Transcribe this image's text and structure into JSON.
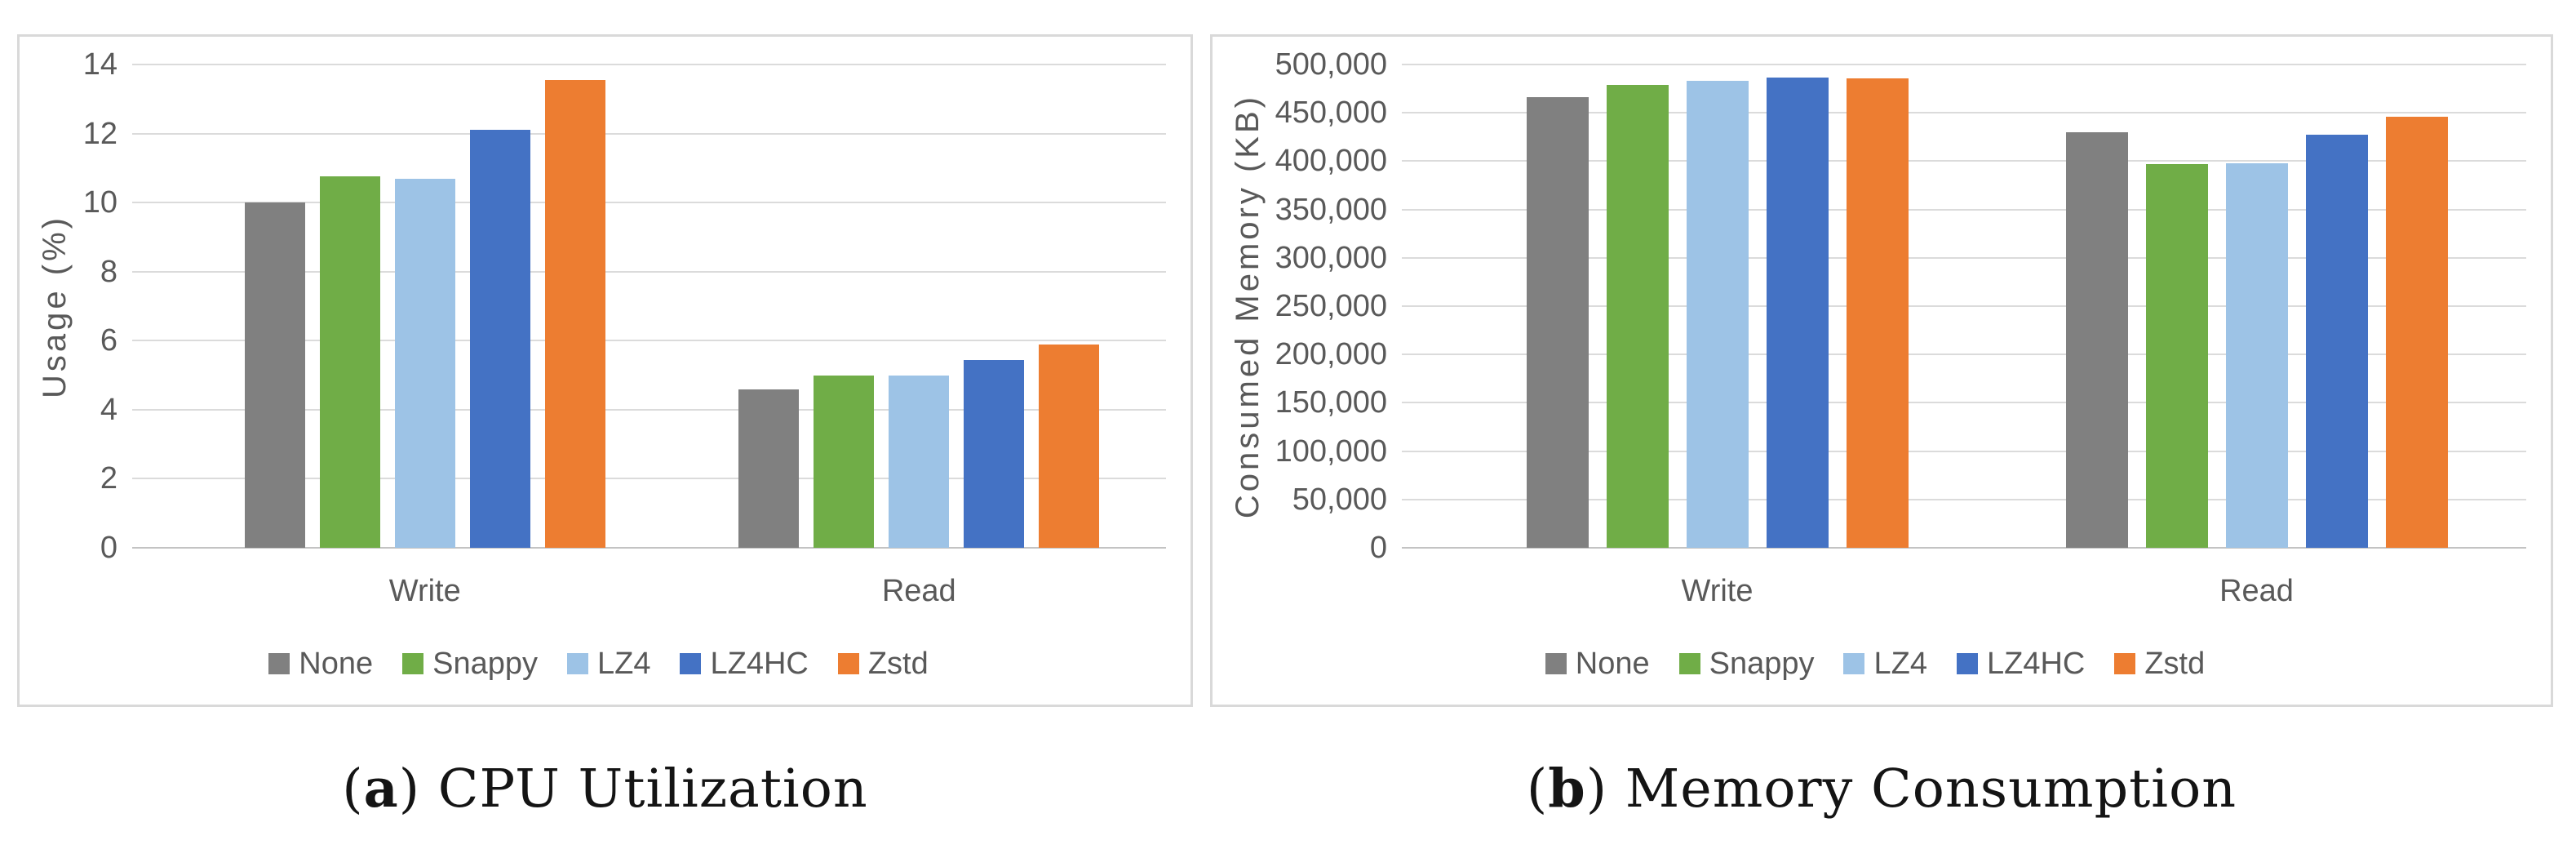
{
  "chart_data": [
    {
      "id": "cpu-utilization",
      "type": "bar",
      "caption": {
        "open": "(",
        "letter": "a",
        "close": ")",
        "text": "CPU Utilization"
      },
      "ylabel": "Usage (%)",
      "xlabel": "",
      "categories": [
        "Write",
        "Read"
      ],
      "series": [
        {
          "name": "None",
          "color": "#808080",
          "values": [
            10.0,
            4.6
          ]
        },
        {
          "name": "Snappy",
          "color": "#70AD47",
          "values": [
            10.75,
            5.0
          ]
        },
        {
          "name": "LZ4",
          "color": "#9DC3E6",
          "values": [
            10.7,
            5.0
          ]
        },
        {
          "name": "LZ4HC",
          "color": "#4472C4",
          "values": [
            12.1,
            5.45
          ]
        },
        {
          "name": "Zstd",
          "color": "#ED7D31",
          "values": [
            13.55,
            5.9
          ]
        }
      ],
      "ylim": [
        0,
        14
      ],
      "yticks": [
        {
          "value": 0,
          "label": "0"
        },
        {
          "value": 2,
          "label": "2"
        },
        {
          "value": 4,
          "label": "4"
        },
        {
          "value": 6,
          "label": "6"
        },
        {
          "value": 8,
          "label": "8"
        },
        {
          "value": 10,
          "label": "10"
        },
        {
          "value": 12,
          "label": "12"
        },
        {
          "value": 14,
          "label": "14"
        }
      ],
      "grid": true,
      "legend_position": "bottom"
    },
    {
      "id": "memory-consumption",
      "type": "bar",
      "caption": {
        "open": "(",
        "letter": "b",
        "close": ")",
        "text": "Memory Consumption"
      },
      "ylabel": "Consumed Memory (KB)",
      "xlabel": "",
      "categories": [
        "Write",
        "Read"
      ],
      "series": [
        {
          "name": "None",
          "color": "#808080",
          "values": [
            466000,
            430000
          ]
        },
        {
          "name": "Snappy",
          "color": "#70AD47",
          "values": [
            479000,
            397000
          ]
        },
        {
          "name": "LZ4",
          "color": "#9DC3E6",
          "values": [
            483000,
            397500
          ]
        },
        {
          "name": "LZ4HC",
          "color": "#4472C4",
          "values": [
            486400,
            427000
          ]
        },
        {
          "name": "Zstd",
          "color": "#ED7D31",
          "values": [
            485800,
            446000
          ]
        }
      ],
      "ylim": [
        0,
        500000
      ],
      "yticks": [
        {
          "value": 0,
          "label": "0"
        },
        {
          "value": 50000,
          "label": "50,000"
        },
        {
          "value": 100000,
          "label": "100,000"
        },
        {
          "value": 150000,
          "label": "150,000"
        },
        {
          "value": 200000,
          "label": "200,000"
        },
        {
          "value": 250000,
          "label": "250,000"
        },
        {
          "value": 300000,
          "label": "300,000"
        },
        {
          "value": 350000,
          "label": "350,000"
        },
        {
          "value": 400000,
          "label": "400,000"
        },
        {
          "value": 450000,
          "label": "450,000"
        },
        {
          "value": 500000,
          "label": "500,000"
        }
      ],
      "grid": true,
      "legend_position": "bottom"
    }
  ],
  "colors": {
    "gridline": "#dbdbdb",
    "axis_baseline": "#c3c3c3",
    "axis_text": "#595959",
    "panel_border": "#d9d9d9",
    "caption_text": "#141414"
  }
}
